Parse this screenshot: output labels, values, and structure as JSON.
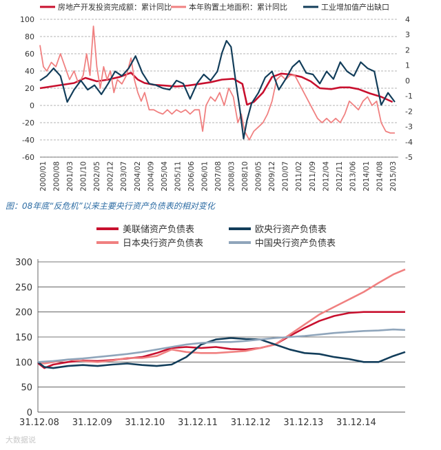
{
  "caption": "图：08年底“反危机”以来主要央行资产负债表的相对变化",
  "watermark": "大数据说",
  "chart_data": [
    {
      "type": "line",
      "title": "",
      "xlabel": "",
      "ylabel": "",
      "ylim": [
        -60,
        100
      ],
      "ylim_right": [
        -5,
        4
      ],
      "yticks": [
        "100",
        "80",
        "60",
        "40",
        "20",
        "0",
        "-20",
        "-40",
        "-60"
      ],
      "yticks_right": [
        "4",
        "3",
        "2",
        "1",
        "0",
        "-1",
        "-2",
        "-3",
        "-4",
        "-5"
      ],
      "xrange": [
        2000.0,
        2015.75
      ],
      "categories": [
        "2000/01",
        "2000/08",
        "2001/03",
        "2001/10",
        "2002/05",
        "2002/12",
        "2003/07",
        "2004/02",
        "2004/09",
        "2005/04",
        "2005/11",
        "2006/06",
        "2006/01",
        "2007/08",
        "2008/03",
        "2008/10",
        "2009/05",
        "2009/12",
        "2010/07",
        "2011/02",
        "2011/09",
        "2012/04",
        "2012/11",
        "2013/06",
        "2014/01",
        "2014/08",
        "2015/03"
      ],
      "legend_position": "top",
      "series": [
        {
          "name": "房地产开发投资完成额：累计同比",
          "color": "#c8102e",
          "axis": "left",
          "x": [
            2000.0,
            2000.5,
            2001.0,
            2001.5,
            2002.0,
            2002.5,
            2003.0,
            2003.5,
            2004.0,
            2004.3,
            2004.6,
            2005.0,
            2005.5,
            2006.0,
            2006.5,
            2007.0,
            2007.5,
            2008.0,
            2008.5,
            2008.9,
            2009.1,
            2009.4,
            2009.8,
            2010.2,
            2010.6,
            2011.0,
            2011.5,
            2011.9,
            2012.3,
            2012.8,
            2013.2,
            2013.6,
            2014.0,
            2014.5,
            2015.0,
            2015.5
          ],
          "y": [
            20,
            22,
            24,
            26,
            32,
            28,
            30,
            33,
            38,
            30,
            26,
            24,
            23,
            22,
            23,
            25,
            27,
            30,
            31,
            25,
            1,
            4,
            15,
            33,
            37,
            36,
            33,
            28,
            20,
            19,
            21,
            21,
            19,
            14,
            10,
            4
          ]
        },
        {
          "name": "本年购置土地面积：累计同比",
          "color": "#f08080",
          "axis": "left",
          "x": [
            2000.0,
            2000.15,
            2000.3,
            2000.5,
            2000.7,
            2000.9,
            2001.1,
            2001.3,
            2001.5,
            2001.7,
            2001.9,
            2002.05,
            2002.2,
            2002.35,
            2002.5,
            2002.65,
            2002.8,
            2002.95,
            2003.1,
            2003.25,
            2003.4,
            2003.6,
            2003.8,
            2004.0,
            2004.15,
            2004.3,
            2004.45,
            2004.6,
            2004.8,
            2005.0,
            2005.2,
            2005.4,
            2005.6,
            2005.8,
            2006.0,
            2006.2,
            2006.4,
            2006.6,
            2006.8,
            2007.0,
            2007.15,
            2007.3,
            2007.5,
            2007.7,
            2007.9,
            2008.1,
            2008.3,
            2008.5,
            2008.7,
            2008.85,
            2009.0,
            2009.2,
            2009.4,
            2009.6,
            2009.8,
            2010.0,
            2010.2,
            2010.4,
            2010.6,
            2010.8,
            2011.0,
            2011.2,
            2011.4,
            2011.6,
            2011.8,
            2012.0,
            2012.2,
            2012.4,
            2012.6,
            2012.8,
            2013.0,
            2013.2,
            2013.4,
            2013.6,
            2013.8,
            2014.0,
            2014.2,
            2014.4,
            2014.6,
            2014.8,
            2015.0,
            2015.2,
            2015.4,
            2015.6
          ],
          "y": [
            70,
            45,
            40,
            50,
            45,
            60,
            45,
            30,
            40,
            25,
            35,
            60,
            35,
            92,
            45,
            20,
            45,
            30,
            40,
            15,
            30,
            25,
            35,
            55,
            30,
            15,
            5,
            15,
            -5,
            -5,
            -8,
            -10,
            -5,
            -10,
            -5,
            -8,
            -5,
            -10,
            -5,
            -5,
            -30,
            0,
            10,
            5,
            15,
            0,
            20,
            10,
            -20,
            -10,
            -30,
            -40,
            -30,
            -25,
            -20,
            -10,
            5,
            30,
            35,
            30,
            35,
            35,
            25,
            15,
            5,
            -5,
            -15,
            -20,
            -15,
            -20,
            -15,
            -20,
            -10,
            5,
            0,
            -5,
            5,
            10,
            0,
            5,
            -20,
            -30,
            -32,
            -32
          ]
        },
        {
          "name": "工业增加值产出缺口",
          "color": "#123d5a",
          "axis": "right",
          "x": [
            2000.0,
            2000.3,
            2000.6,
            2000.9,
            2001.2,
            2001.5,
            2001.8,
            2002.1,
            2002.4,
            2002.7,
            2003.0,
            2003.3,
            2003.6,
            2003.9,
            2004.2,
            2004.5,
            2004.8,
            2005.1,
            2005.4,
            2005.7,
            2006.0,
            2006.3,
            2006.6,
            2006.9,
            2007.2,
            2007.5,
            2007.8,
            2008.0,
            2008.2,
            2008.4,
            2008.6,
            2008.8,
            2008.95,
            2009.1,
            2009.3,
            2009.6,
            2009.9,
            2010.2,
            2010.5,
            2010.8,
            2011.1,
            2011.4,
            2011.7,
            2012.0,
            2012.3,
            2012.6,
            2012.9,
            2013.2,
            2013.5,
            2013.8,
            2014.1,
            2014.4,
            2014.7,
            2015.0,
            2015.3,
            2015.6
          ],
          "y": [
            0,
            0.3,
            0.8,
            0.3,
            -1.4,
            -0.6,
            0,
            -0.6,
            -0.3,
            -0.9,
            -0.2,
            0.6,
            0.3,
            0.8,
            1.6,
            0.5,
            -0.2,
            -0.3,
            -0.5,
            -0.6,
            0,
            -0.2,
            -1.2,
            -0.2,
            0.4,
            0,
            0.6,
            1.8,
            2.6,
            2.2,
            0,
            -2,
            -3.8,
            -2.6,
            -1.5,
            -0.8,
            0.2,
            0.6,
            -0.6,
            0.1,
            0.9,
            1.3,
            0.5,
            0.4,
            -0.2,
            0.6,
            0.1,
            1.2,
            0.6,
            0.3,
            1.2,
            0.8,
            0.6,
            -1.6,
            -0.8,
            -1.4
          ]
        }
      ]
    },
    {
      "type": "line",
      "title": "",
      "xlabel": "",
      "ylabel": "",
      "ylim": [
        0,
        300
      ],
      "yticks": [
        "300",
        "250",
        "200",
        "150",
        "100",
        "50",
        "0"
      ],
      "xrange": [
        2008.99,
        2015.2
      ],
      "categories": [
        "31.12.08",
        "31.12.09",
        "31.12.10",
        "31.12.11",
        "31.12.12",
        "31.12.13",
        "31.12.14"
      ],
      "legend_position": "top",
      "series": [
        {
          "name": "美联储资产负债表",
          "color": "#c8102e",
          "x": [
            2008.99,
            2009.1,
            2009.25,
            2009.5,
            2009.75,
            2010.0,
            2010.25,
            2010.5,
            2010.75,
            2011.0,
            2011.25,
            2011.5,
            2011.75,
            2012.0,
            2012.25,
            2012.5,
            2012.75,
            2013.0,
            2013.25,
            2013.5,
            2013.75,
            2014.0,
            2014.25,
            2014.5,
            2014.75,
            2015.0,
            2015.2
          ],
          "y": [
            98,
            88,
            95,
            100,
            103,
            102,
            104,
            107,
            110,
            118,
            128,
            130,
            128,
            130,
            126,
            125,
            128,
            135,
            152,
            168,
            182,
            192,
            198,
            200,
            200,
            200,
            200
          ]
        },
        {
          "name": "日本央行资产负债表",
          "color": "#f08080",
          "x": [
            2008.99,
            2009.1,
            2009.25,
            2009.5,
            2009.75,
            2010.0,
            2010.25,
            2010.5,
            2010.75,
            2011.0,
            2011.25,
            2011.5,
            2011.75,
            2012.0,
            2012.25,
            2012.5,
            2012.75,
            2013.0,
            2013.25,
            2013.5,
            2013.75,
            2014.0,
            2014.25,
            2014.5,
            2014.75,
            2015.0,
            2015.2
          ],
          "y": [
            100,
            97,
            100,
            105,
            102,
            100,
            103,
            108,
            108,
            112,
            125,
            120,
            118,
            118,
            120,
            122,
            128,
            135,
            155,
            175,
            195,
            210,
            225,
            240,
            258,
            275,
            285
          ]
        },
        {
          "name": "欧央行资产负债表",
          "color": "#123d5a",
          "x": [
            2008.99,
            2009.1,
            2009.25,
            2009.5,
            2009.75,
            2010.0,
            2010.25,
            2010.5,
            2010.75,
            2011.0,
            2011.25,
            2011.5,
            2011.75,
            2012.0,
            2012.25,
            2012.5,
            2012.75,
            2013.0,
            2013.25,
            2013.5,
            2013.75,
            2014.0,
            2014.25,
            2014.5,
            2014.75,
            2015.0,
            2015.2
          ],
          "y": [
            100,
            90,
            88,
            92,
            94,
            92,
            95,
            97,
            94,
            92,
            95,
            110,
            135,
            145,
            148,
            146,
            145,
            135,
            125,
            118,
            116,
            110,
            106,
            100,
            100,
            112,
            120
          ]
        },
        {
          "name": "中国央行资产负债表",
          "color": "#8fa5bb",
          "x": [
            2008.99,
            2009.25,
            2009.5,
            2009.75,
            2010.0,
            2010.25,
            2010.5,
            2010.75,
            2011.0,
            2011.25,
            2011.5,
            2011.75,
            2012.0,
            2012.25,
            2012.5,
            2012.75,
            2013.0,
            2013.25,
            2013.5,
            2013.75,
            2014.0,
            2014.25,
            2014.5,
            2014.75,
            2015.0,
            2015.2
          ],
          "y": [
            100,
            102,
            105,
            107,
            110,
            113,
            116,
            120,
            125,
            130,
            135,
            138,
            140,
            140,
            142,
            145,
            148,
            150,
            152,
            155,
            158,
            160,
            162,
            163,
            165,
            164
          ]
        }
      ]
    }
  ]
}
